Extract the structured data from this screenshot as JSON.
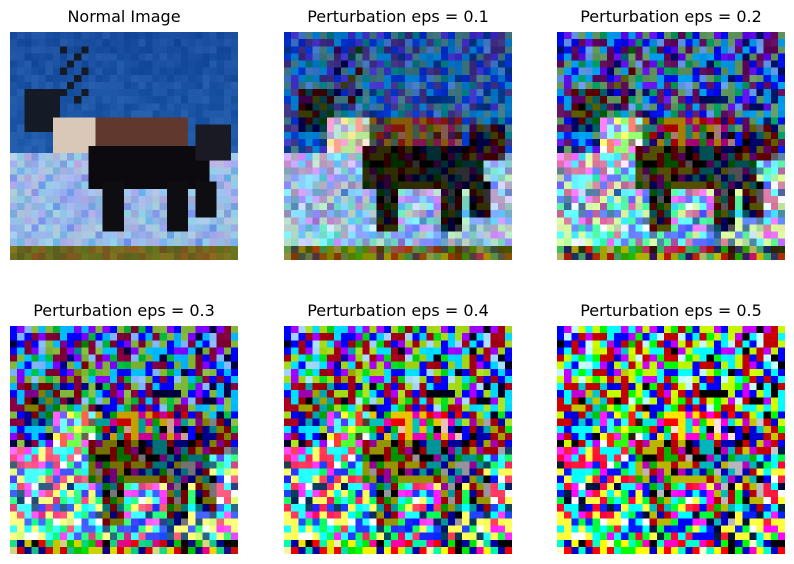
{
  "figure": {
    "panels": [
      {
        "id": "normal",
        "title": "Normal Image",
        "eps": 0.0
      },
      {
        "id": "eps-0-1",
        "title": "Perturbation eps = 0.1",
        "eps": 0.1
      },
      {
        "id": "eps-0-2",
        "title": "Perturbation eps = 0.2",
        "eps": 0.2
      },
      {
        "id": "eps-0-3",
        "title": "Perturbation eps = 0.3",
        "eps": 0.3
      },
      {
        "id": "eps-0-4",
        "title": "Perturbation eps = 0.4",
        "eps": 0.4
      },
      {
        "id": "eps-0-5",
        "title": "Perturbation eps = 0.5",
        "eps": 0.5
      }
    ],
    "image_resolution": "32x32",
    "subject": "deer-silhouette"
  }
}
